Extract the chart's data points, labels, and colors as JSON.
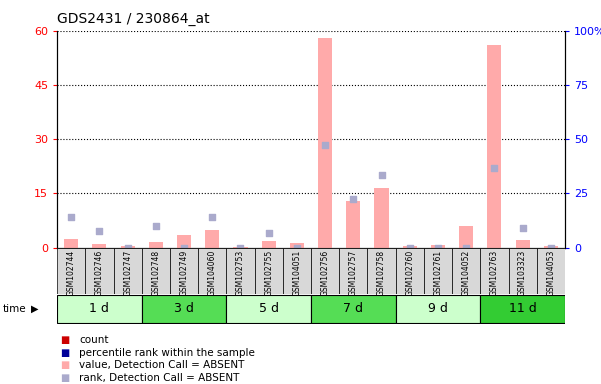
{
  "title": "GDS2431 / 230864_at",
  "samples": [
    "GSM102744",
    "GSM102746",
    "GSM102747",
    "GSM102748",
    "GSM102749",
    "GSM104060",
    "GSM102753",
    "GSM102755",
    "GSM104051",
    "GSM102756",
    "GSM102757",
    "GSM102758",
    "GSM102760",
    "GSM102761",
    "GSM104052",
    "GSM102763",
    "GSM103323",
    "GSM104053"
  ],
  "absent_count": [
    2.5,
    1.0,
    0.5,
    1.5,
    3.5,
    5.0,
    0.3,
    1.8,
    1.2,
    58.0,
    13.0,
    16.5,
    0.5,
    0.8,
    6.0,
    56.0,
    2.0,
    0.4
  ],
  "absent_rank": [
    8.5,
    4.5,
    0.0,
    6.0,
    0.0,
    8.5,
    0.0,
    4.0,
    0.0,
    28.5,
    13.5,
    20.0,
    0.0,
    0.0,
    0.0,
    22.0,
    5.5,
    0.0
  ],
  "time_groups": [
    {
      "label": "1 d",
      "start": 0,
      "end": 3,
      "color": "#ccffcc"
    },
    {
      "label": "3 d",
      "start": 3,
      "end": 6,
      "color": "#55dd55"
    },
    {
      "label": "5 d",
      "start": 6,
      "end": 9,
      "color": "#ccffcc"
    },
    {
      "label": "7 d",
      "start": 9,
      "end": 12,
      "color": "#55dd55"
    },
    {
      "label": "9 d",
      "start": 12,
      "end": 15,
      "color": "#ccffcc"
    },
    {
      "label": "11 d",
      "start": 15,
      "end": 18,
      "color": "#33cc33"
    }
  ],
  "ylim_left": [
    0,
    60
  ],
  "ylim_right": [
    0,
    100
  ],
  "yticks_left": [
    0,
    15,
    30,
    45,
    60
  ],
  "yticks_right": [
    0,
    25,
    50,
    75,
    100
  ],
  "ytick_labels_right": [
    "0",
    "25",
    "50",
    "75",
    "100%"
  ],
  "count_color_absent": "#ffaaaa",
  "rank_color_absent": "#aaaacc",
  "grid_color": "black",
  "bg_color": "white",
  "xticklabel_bg": "#d8d8d8",
  "legend": [
    {
      "color": "#cc0000",
      "label": "count"
    },
    {
      "color": "#000099",
      "label": "percentile rank within the sample"
    },
    {
      "color": "#ffaaaa",
      "label": "value, Detection Call = ABSENT"
    },
    {
      "color": "#aaaacc",
      "label": "rank, Detection Call = ABSENT"
    }
  ]
}
